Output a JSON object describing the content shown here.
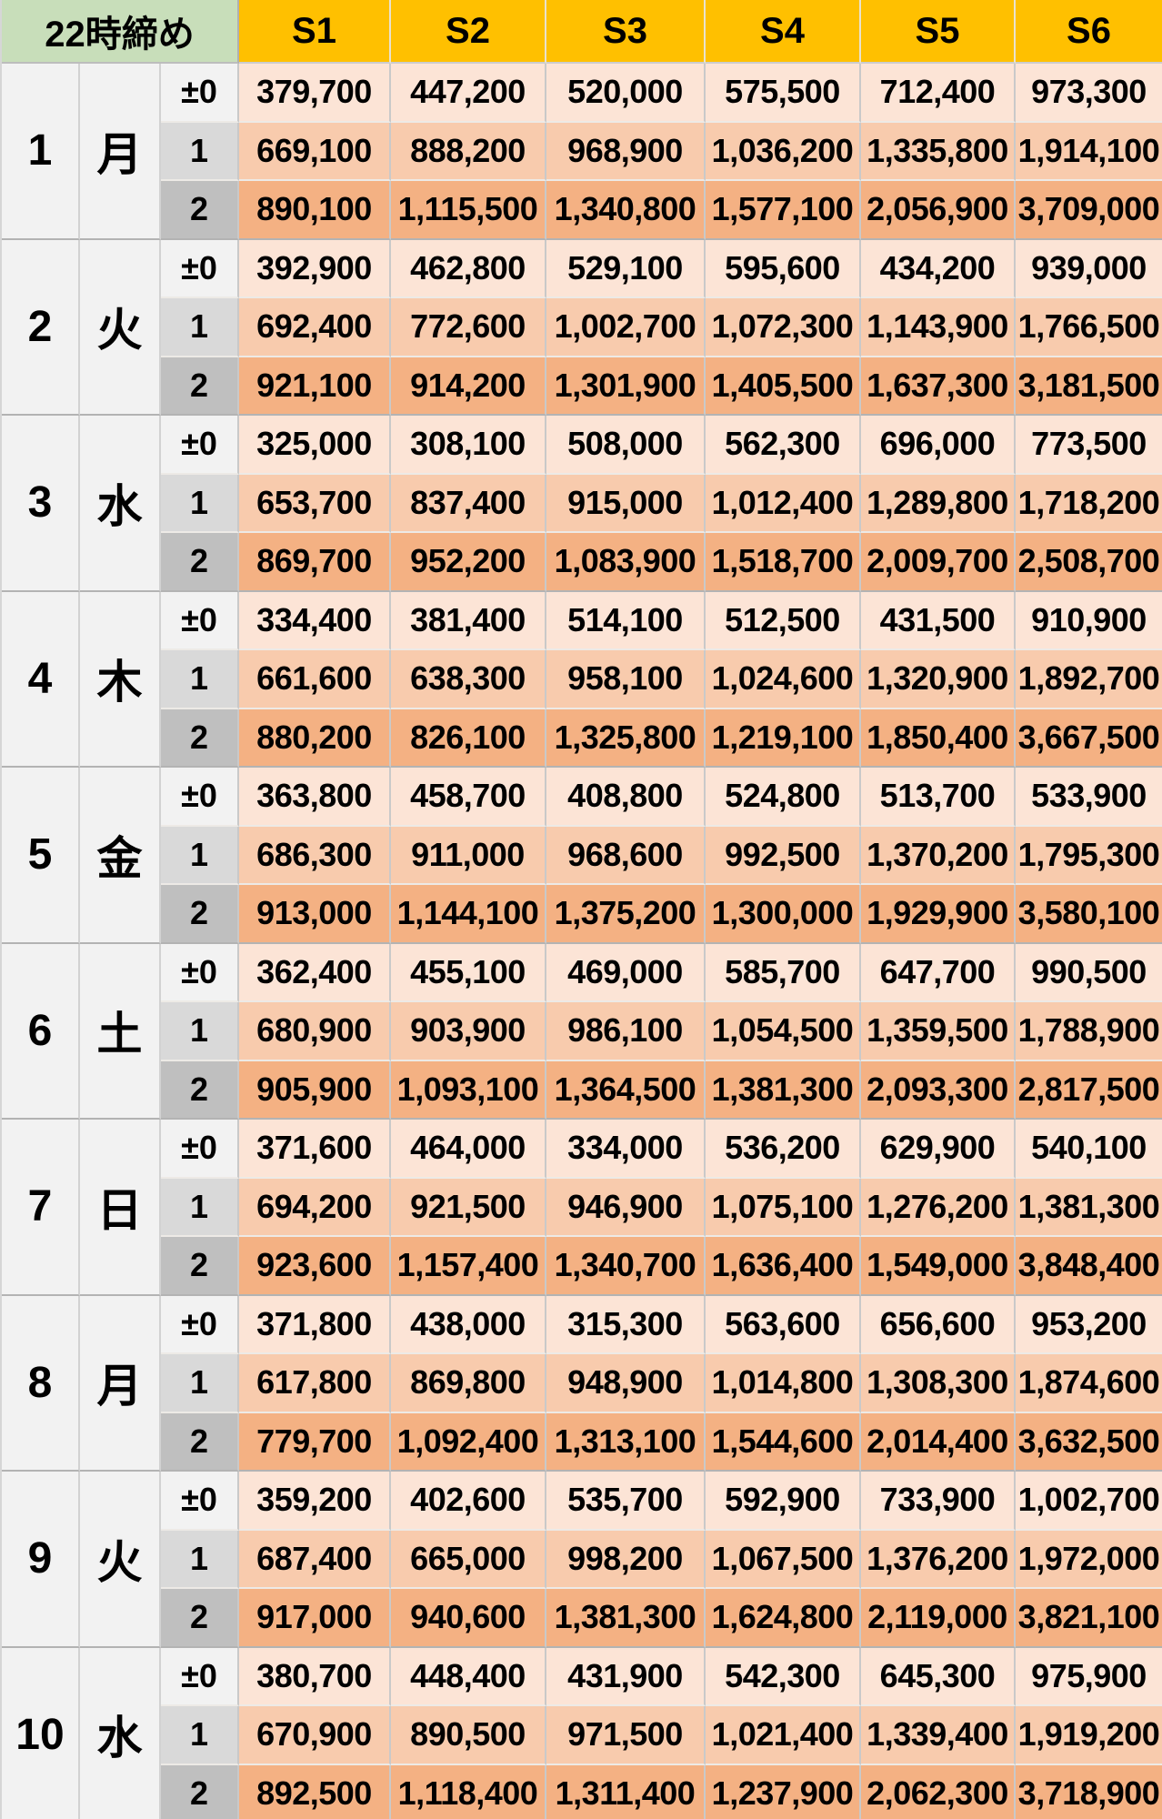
{
  "header": {
    "title": "22時締め",
    "columns": [
      "S1",
      "S2",
      "S3",
      "S4",
      "S5",
      "S6"
    ]
  },
  "row_labels": [
    "±0",
    "1",
    "2"
  ],
  "colors": {
    "header_green": "#c8deba",
    "header_yellow": "#ffc000",
    "day_cell_gray": "#f2f2f2",
    "label_gray_0": "#f2f2f2",
    "label_gray_1": "#d9d9d9",
    "label_gray_2": "#bfbfbf",
    "row_peach_0": "#fce4d6",
    "row_peach_1": "#f8cbad",
    "row_peach_2": "#f4b183"
  },
  "days": [
    {
      "num": "1",
      "weekday": "月",
      "rows": [
        {
          "label": "±0",
          "values": [
            "379,700",
            "447,200",
            "520,000",
            "575,500",
            "712,400",
            "973,300"
          ]
        },
        {
          "label": "1",
          "values": [
            "669,100",
            "888,200",
            "968,900",
            "1,036,200",
            "1,335,800",
            "1,914,100"
          ]
        },
        {
          "label": "2",
          "values": [
            "890,100",
            "1,115,500",
            "1,340,800",
            "1,577,100",
            "2,056,900",
            "3,709,000"
          ]
        }
      ]
    },
    {
      "num": "2",
      "weekday": "火",
      "rows": [
        {
          "label": "±0",
          "values": [
            "392,900",
            "462,800",
            "529,100",
            "595,600",
            "434,200",
            "939,000"
          ]
        },
        {
          "label": "1",
          "values": [
            "692,400",
            "772,600",
            "1,002,700",
            "1,072,300",
            "1,143,900",
            "1,766,500"
          ]
        },
        {
          "label": "2",
          "values": [
            "921,100",
            "914,200",
            "1,301,900",
            "1,405,500",
            "1,637,300",
            "3,181,500"
          ]
        }
      ]
    },
    {
      "num": "3",
      "weekday": "水",
      "rows": [
        {
          "label": "±0",
          "values": [
            "325,000",
            "308,100",
            "508,000",
            "562,300",
            "696,000",
            "773,500"
          ]
        },
        {
          "label": "1",
          "values": [
            "653,700",
            "837,400",
            "915,000",
            "1,012,400",
            "1,289,800",
            "1,718,200"
          ]
        },
        {
          "label": "2",
          "values": [
            "869,700",
            "952,200",
            "1,083,900",
            "1,518,700",
            "2,009,700",
            "2,508,700"
          ]
        }
      ]
    },
    {
      "num": "4",
      "weekday": "木",
      "rows": [
        {
          "label": "±0",
          "values": [
            "334,400",
            "381,400",
            "514,100",
            "512,500",
            "431,500",
            "910,900"
          ]
        },
        {
          "label": "1",
          "values": [
            "661,600",
            "638,300",
            "958,100",
            "1,024,600",
            "1,320,900",
            "1,892,700"
          ]
        },
        {
          "label": "2",
          "values": [
            "880,200",
            "826,100",
            "1,325,800",
            "1,219,100",
            "1,850,400",
            "3,667,500"
          ]
        }
      ]
    },
    {
      "num": "5",
      "weekday": "金",
      "rows": [
        {
          "label": "±0",
          "values": [
            "363,800",
            "458,700",
            "408,800",
            "524,800",
            "513,700",
            "533,900"
          ]
        },
        {
          "label": "1",
          "values": [
            "686,300",
            "911,000",
            "968,600",
            "992,500",
            "1,370,200",
            "1,795,300"
          ]
        },
        {
          "label": "2",
          "values": [
            "913,000",
            "1,144,100",
            "1,375,200",
            "1,300,000",
            "1,929,900",
            "3,580,100"
          ]
        }
      ]
    },
    {
      "num": "6",
      "weekday": "土",
      "rows": [
        {
          "label": "±0",
          "values": [
            "362,400",
            "455,100",
            "469,000",
            "585,700",
            "647,700",
            "990,500"
          ]
        },
        {
          "label": "1",
          "values": [
            "680,900",
            "903,900",
            "986,100",
            "1,054,500",
            "1,359,500",
            "1,788,900"
          ]
        },
        {
          "label": "2",
          "values": [
            "905,900",
            "1,093,100",
            "1,364,500",
            "1,381,300",
            "2,093,300",
            "2,817,500"
          ]
        }
      ]
    },
    {
      "num": "7",
      "weekday": "日",
      "rows": [
        {
          "label": "±0",
          "values": [
            "371,600",
            "464,000",
            "334,000",
            "536,200",
            "629,900",
            "540,100"
          ]
        },
        {
          "label": "1",
          "values": [
            "694,200",
            "921,500",
            "946,900",
            "1,075,100",
            "1,276,200",
            "1,381,300"
          ]
        },
        {
          "label": "2",
          "values": [
            "923,600",
            "1,157,400",
            "1,340,700",
            "1,636,400",
            "1,549,000",
            "3,848,400"
          ]
        }
      ]
    },
    {
      "num": "8",
      "weekday": "月",
      "rows": [
        {
          "label": "±0",
          "values": [
            "371,800",
            "438,000",
            "315,300",
            "563,600",
            "656,600",
            "953,200"
          ]
        },
        {
          "label": "1",
          "values": [
            "617,800",
            "869,800",
            "948,900",
            "1,014,800",
            "1,308,300",
            "1,874,600"
          ]
        },
        {
          "label": "2",
          "values": [
            "779,700",
            "1,092,400",
            "1,313,100",
            "1,544,600",
            "2,014,400",
            "3,632,500"
          ]
        }
      ]
    },
    {
      "num": "9",
      "weekday": "火",
      "rows": [
        {
          "label": "±0",
          "values": [
            "359,200",
            "402,600",
            "535,700",
            "592,900",
            "733,900",
            "1,002,700"
          ]
        },
        {
          "label": "1",
          "values": [
            "687,400",
            "665,000",
            "998,200",
            "1,067,500",
            "1,376,200",
            "1,972,000"
          ]
        },
        {
          "label": "2",
          "values": [
            "917,000",
            "940,600",
            "1,381,300",
            "1,624,800",
            "2,119,000",
            "3,821,100"
          ]
        }
      ]
    },
    {
      "num": "10",
      "weekday": "水",
      "rows": [
        {
          "label": "±0",
          "values": [
            "380,700",
            "448,400",
            "431,900",
            "542,300",
            "645,300",
            "975,900"
          ]
        },
        {
          "label": "1",
          "values": [
            "670,900",
            "890,500",
            "971,500",
            "1,021,400",
            "1,339,400",
            "1,919,200"
          ]
        },
        {
          "label": "2",
          "values": [
            "892,500",
            "1,118,400",
            "1,311,400",
            "1,237,900",
            "2,062,300",
            "3,718,900"
          ]
        }
      ]
    }
  ]
}
